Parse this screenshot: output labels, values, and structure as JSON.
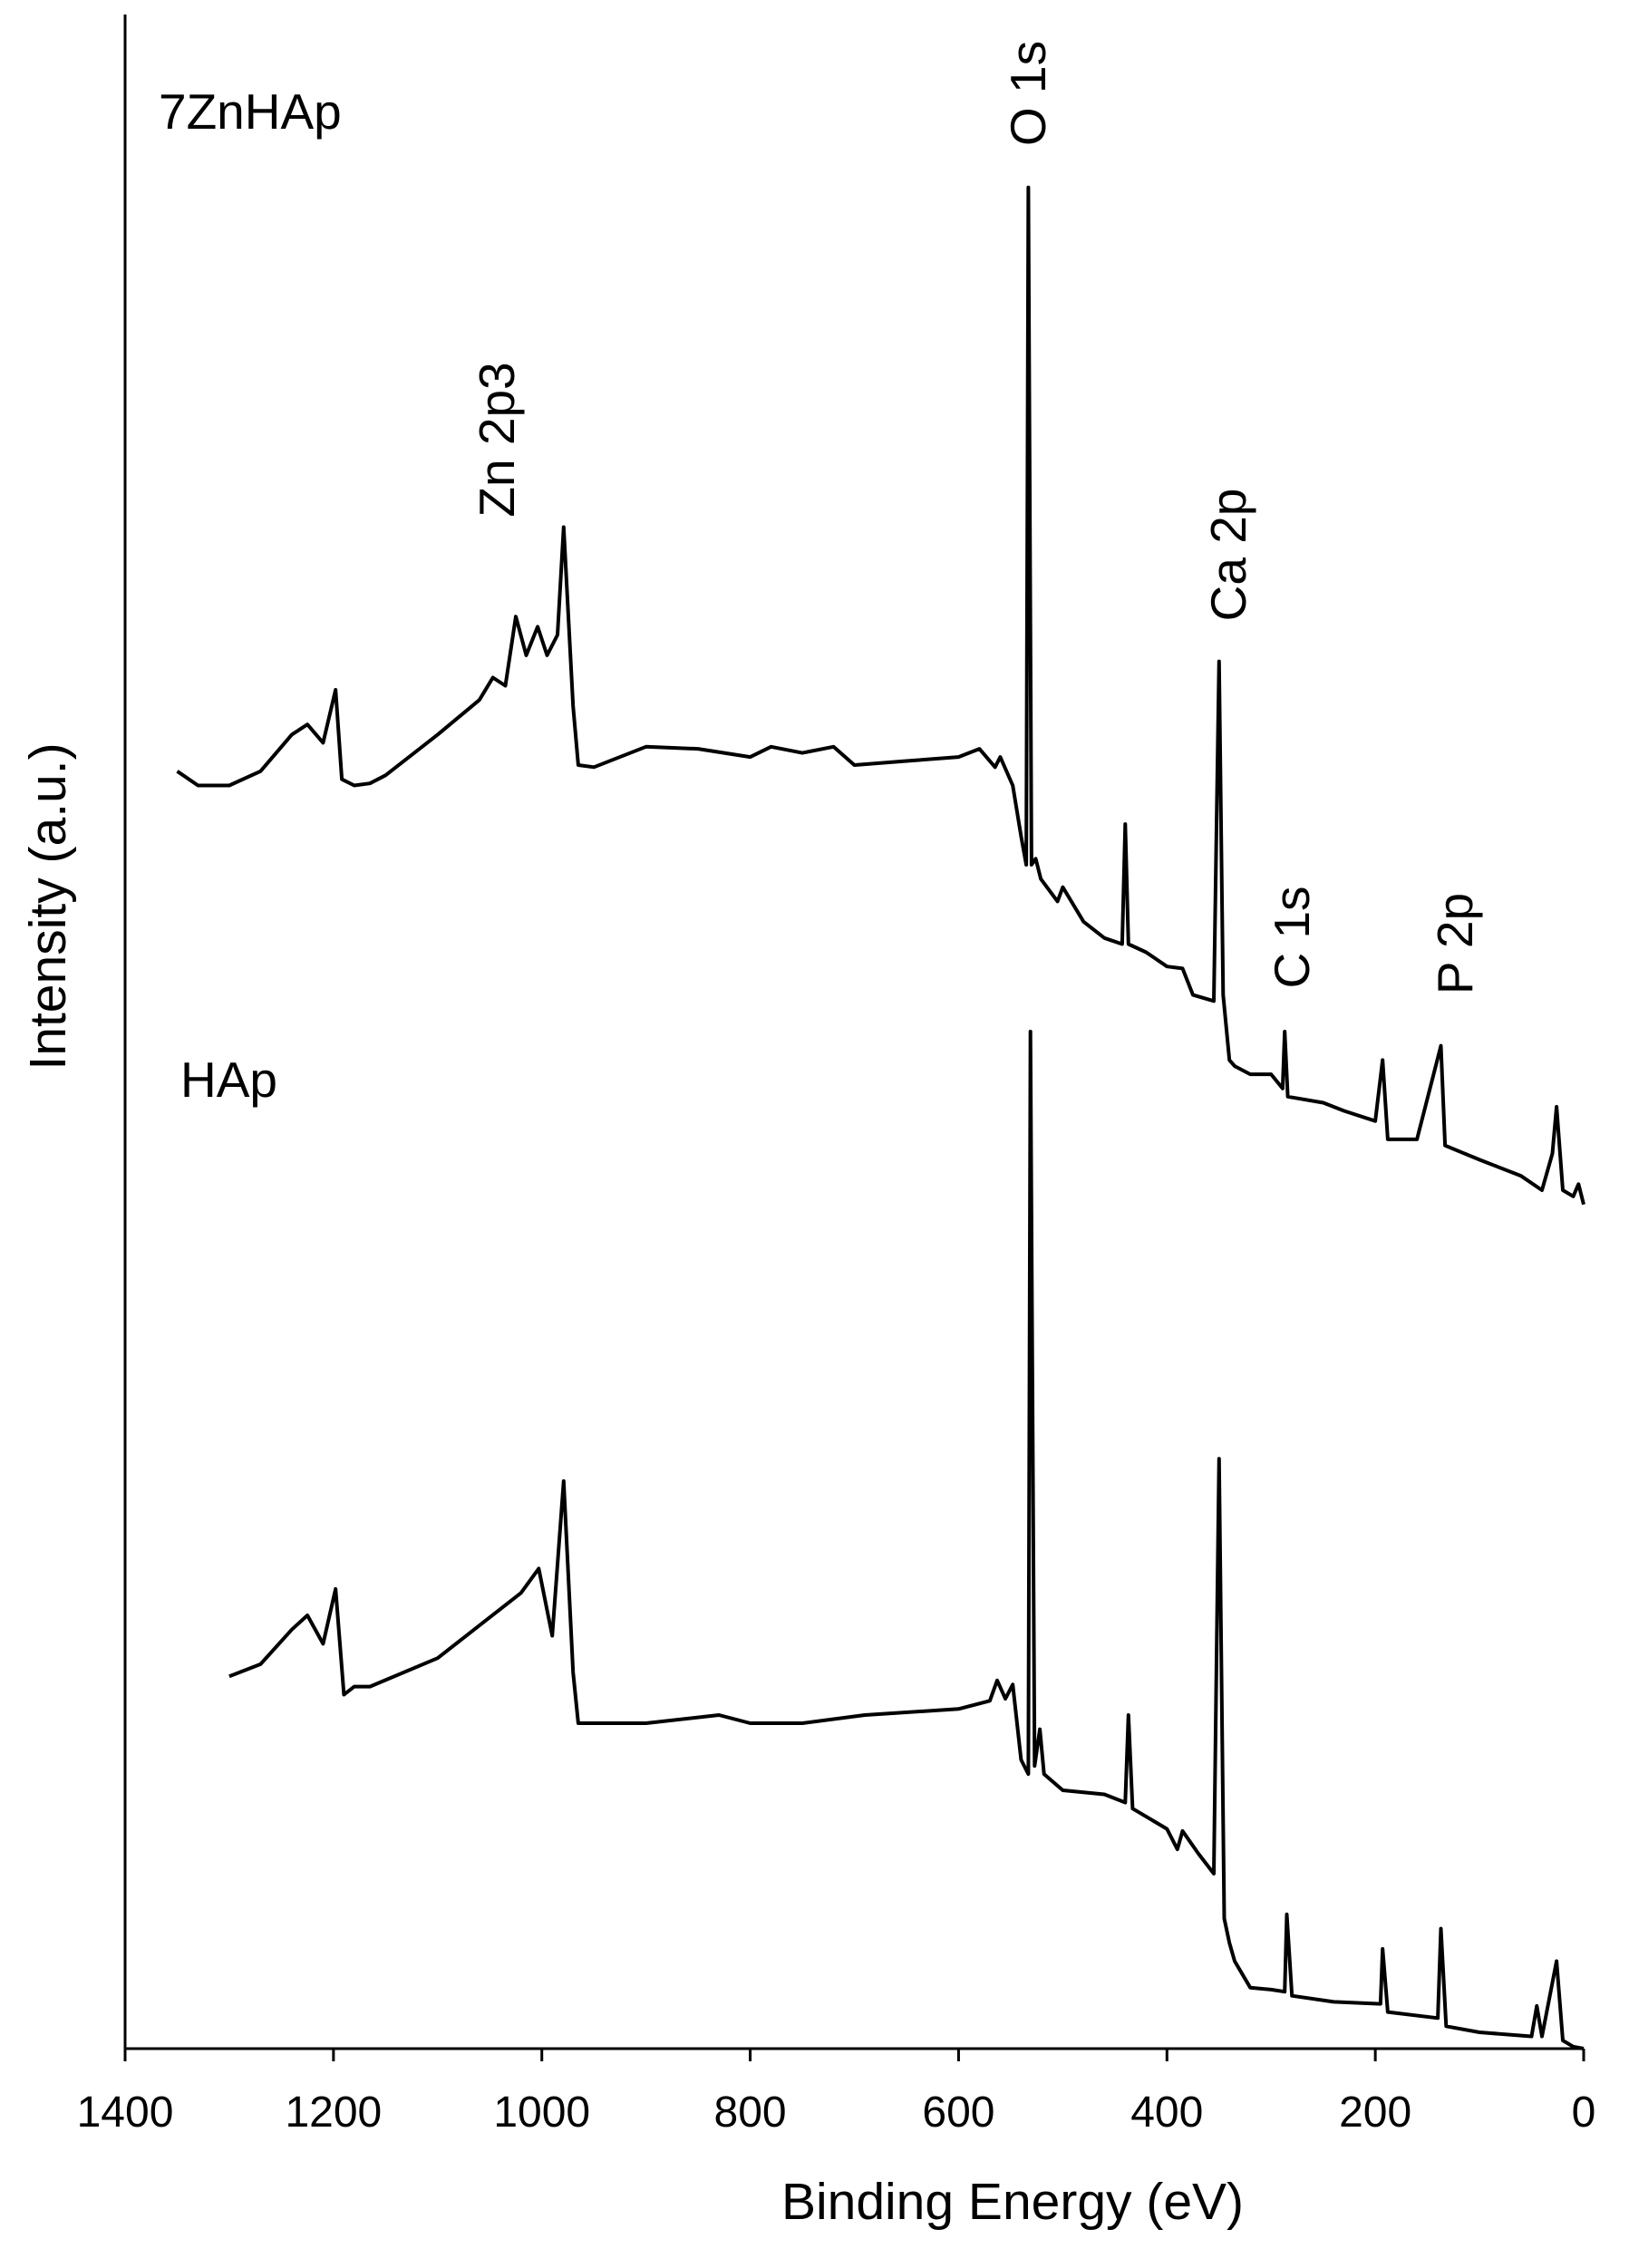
{
  "chart_data": {
    "type": "line",
    "x_label": "Binding Energy (eV)",
    "y_label": "Intensity (a.u.)",
    "xlim": [
      1400,
      0
    ],
    "xticks": [
      1400,
      1200,
      1000,
      800,
      600,
      400,
      200,
      0
    ],
    "ylim": [
      0,
      100
    ],
    "annotations": [
      "O 1s",
      "Zn 2p3",
      "Ca 2p",
      "C 1s",
      "P 2p"
    ],
    "series": [
      {
        "name": "7ZnHAp",
        "color": "#000000",
        "x": [
          1350,
          1330,
          1300,
          1270,
          1240,
          1225,
          1210,
          1198,
          1192,
          1180,
          1165,
          1150,
          1100,
          1060,
          1047,
          1035,
          1025,
          1015,
          1004,
          995,
          985,
          979,
          970,
          965,
          950,
          900,
          850,
          800,
          780,
          750,
          720,
          700,
          650,
          600,
          580,
          565,
          560,
          548,
          540,
          535,
          533,
          530,
          526,
          521,
          505,
          500,
          480,
          460,
          443,
          440,
          437,
          420,
          400,
          385,
          375,
          355,
          350,
          346,
          340,
          335,
          320,
          300,
          289,
          287,
          284,
          250,
          230,
          200,
          193,
          188,
          160,
          137,
          133,
          100,
          60,
          40,
          30,
          26,
          20,
          10,
          5,
          0
        ],
        "values": [
          62.8,
          62.1,
          62.1,
          62.8,
          64.6,
          65.1,
          64.2,
          66.8,
          62.4,
          62.1,
          62.2,
          62.6,
          64.6,
          66.3,
          67.4,
          67.0,
          70.4,
          68.5,
          69.9,
          68.5,
          69.5,
          74.8,
          66.0,
          63.1,
          63.0,
          64.0,
          63.9,
          63.5,
          64.0,
          63.7,
          64.0,
          63.1,
          63.3,
          63.5,
          63.9,
          63.0,
          63.5,
          62.1,
          59.6,
          58.2,
          91.5,
          58.2,
          58.5,
          57.5,
          56.4,
          57.1,
          55.4,
          54.6,
          54.3,
          60.2,
          54.3,
          53.9,
          53.2,
          53.1,
          51.8,
          51.5,
          68.2,
          51.8,
          48.6,
          48.3,
          47.9,
          47.9,
          47.2,
          50.0,
          46.8,
          46.5,
          46.1,
          45.6,
          48.6,
          44.7,
          44.7,
          49.3,
          44.4,
          43.7,
          42.9,
          42.2,
          44.0,
          46.3,
          42.2,
          41.9,
          42.5,
          41.5
        ]
      },
      {
        "name": "HAp",
        "color": "#000000",
        "x": [
          1300,
          1270,
          1240,
          1225,
          1210,
          1198,
          1190,
          1180,
          1165,
          1100,
          1060,
          1020,
          1003,
          990,
          979,
          970,
          965,
          900,
          830,
          800,
          750,
          690,
          600,
          570,
          563,
          555,
          548,
          540,
          533,
          531,
          527,
          522,
          518,
          500,
          460,
          440,
          437,
          433,
          400,
          390,
          385,
          370,
          355,
          350,
          345,
          340,
          335,
          320,
          300,
          287,
          285,
          280,
          240,
          195,
          193,
          188,
          140,
          137,
          132,
          100,
          50,
          45,
          40,
          26,
          20,
          10,
          0
        ],
        "values": [
          18.3,
          18.9,
          20.6,
          21.3,
          19.9,
          22.6,
          17.4,
          17.8,
          17.8,
          19.2,
          20.8,
          22.4,
          23.6,
          20.3,
          27.9,
          18.5,
          16.0,
          16.0,
          16.4,
          16.0,
          16.0,
          16.4,
          16.7,
          17.1,
          18.1,
          17.2,
          17.9,
          14.2,
          13.5,
          50.0,
          13.9,
          15.7,
          13.5,
          12.7,
          12.5,
          12.1,
          16.4,
          11.8,
          10.8,
          9.8,
          10.7,
          9.6,
          8.6,
          29.0,
          6.4,
          5.2,
          4.3,
          3.0,
          2.9,
          2.8,
          6.6,
          2.6,
          2.3,
          2.2,
          4.9,
          1.8,
          1.5,
          5.9,
          1.1,
          0.8,
          0.6,
          2.1,
          0.6,
          4.3,
          0.4,
          0.1,
          0
        ]
      }
    ]
  }
}
